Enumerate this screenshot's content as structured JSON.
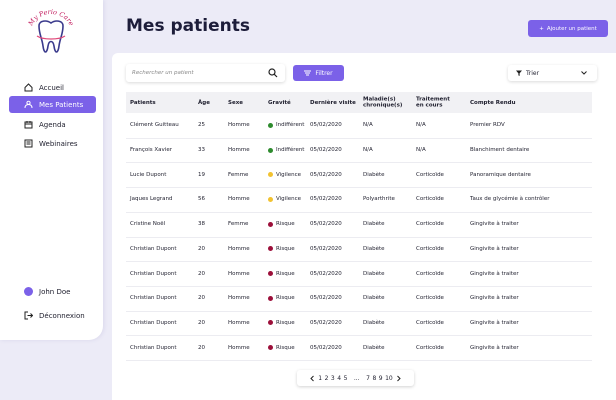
{
  "sidebar": {
    "logo": "My Perio Care",
    "nav": [
      "Accueil",
      "Mes Patients",
      "Agenda",
      "Webinaires"
    ],
    "user": "John Doe",
    "logout": "Déconnexion"
  },
  "header": {
    "title": "Mes patients",
    "add_button": "Ajouter un patient"
  },
  "toolbar": {
    "search_placeholder": "Rechercher un patient",
    "filter_button": "Filtrer",
    "sort": "Trier"
  },
  "table": {
    "columns": [
      "Patients",
      "Âge",
      "Sexe",
      "Gravité",
      "Dernière visite",
      "Maladie(s) chronique(s)",
      "Traitement en cours",
      "Compte Rendu"
    ],
    "rows": [
      [
        "Clément Guitteau",
        "25",
        "Homme",
        "Indifférent",
        "05/02/2020",
        "N/A",
        "N/A",
        "Premier RDV"
      ],
      [
        "François Xavier",
        "33",
        "Homme",
        "Indifférent",
        "05/02/2020",
        "N/A",
        "N/A",
        "Blanchiment dentaire"
      ],
      [
        "Lucie Dupont",
        "19",
        "Femme",
        "Vigilence",
        "05/02/2020",
        "Diabète",
        "Corticoïde",
        "Panoramique dentaire"
      ],
      [
        "Jaques Legrand",
        "56",
        "Homme",
        "Vigilence",
        "05/02/2020",
        "Polyarthrite",
        "Corticoïde",
        "Taux de glycémie à contrôler"
      ],
      [
        "Cristine Noël",
        "38",
        "Femme",
        "Risque",
        "05/02/2020",
        "Diabète",
        "Corticoïde",
        "Gingivite à traiter"
      ],
      [
        "Christian Dupont",
        "20",
        "Homme",
        "Risque",
        "05/02/2020",
        "Diabète",
        "Corticoïde",
        "Gingivite à traiter"
      ],
      [
        "Christian Dupont",
        "20",
        "Homme",
        "Risque",
        "05/02/2020",
        "Diabète",
        "Corticoïde",
        "Gingivite à traiter"
      ],
      [
        "Christian Dupont",
        "20",
        "Homme",
        "Risque",
        "05/02/2020",
        "Diabète",
        "Corticoïde",
        "Gingivite à traiter"
      ],
      [
        "Christian Dupont",
        "20",
        "Homme",
        "Risque",
        "05/02/2020",
        "Diabète",
        "Corticoïde",
        "Gingivite à traiter"
      ],
      [
        "Christian Dupont",
        "20",
        "Homme",
        "Risque",
        "05/02/2020",
        "Diabète",
        "Corticoïde",
        "Gingivite à traiter"
      ]
    ]
  },
  "pagination": {
    "pages": [
      "1",
      "2",
      "3",
      "4",
      "5",
      "...",
      "7",
      "8",
      "9",
      "10"
    ]
  }
}
